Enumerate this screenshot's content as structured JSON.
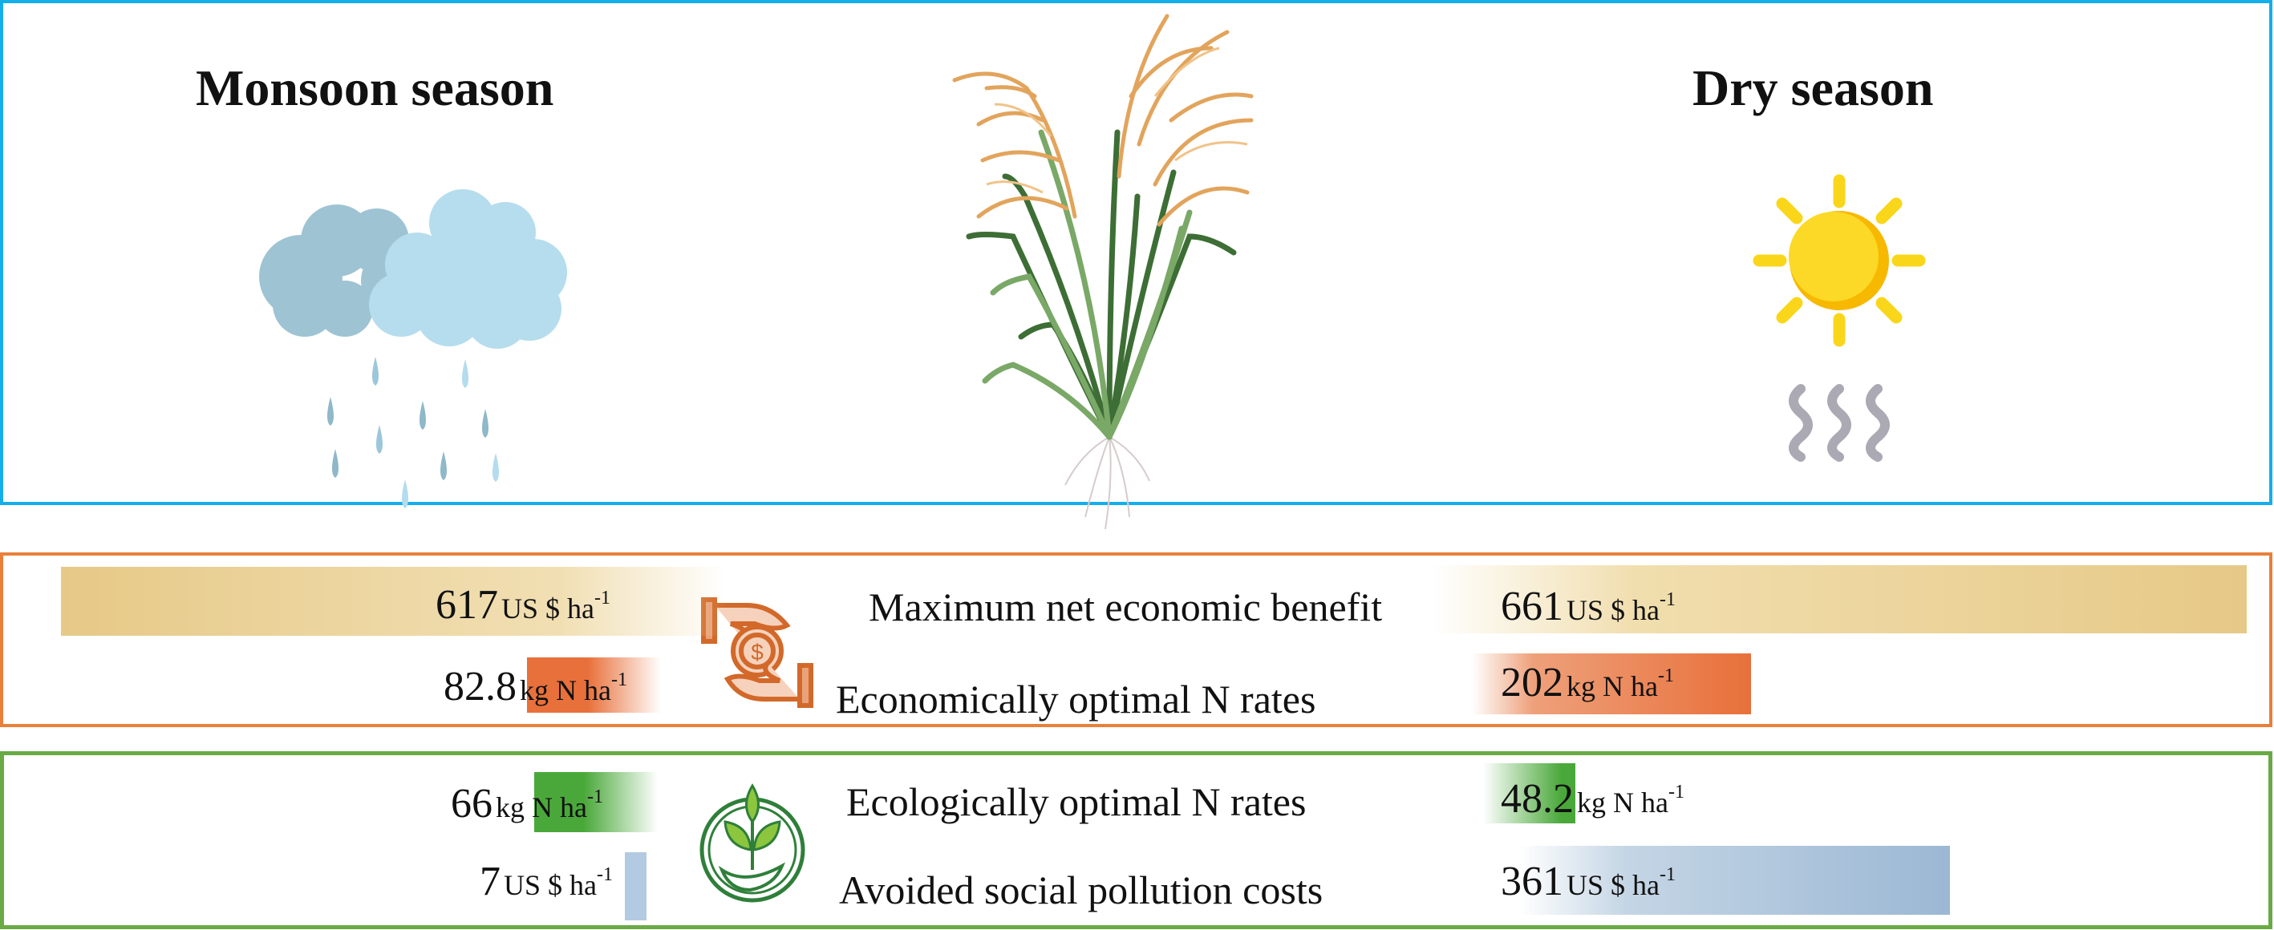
{
  "seasons": {
    "left_title": "Monsoon season",
    "right_title": "Dry season"
  },
  "icons": {
    "left": "rain-cloud-icon",
    "center": "rice-plant-illustration",
    "right": "sun-heat-icon",
    "economic": "money-hands-icon",
    "ecological": "plant-in-hand-icon"
  },
  "colors": {
    "top_border": "#14aeea",
    "economic_border": "#e8803a",
    "ecological_border": "#6aaa45",
    "benefit_bar": "#e6c987",
    "econ_n_bar": "#e8703a",
    "eco_n_bar": "#4aa83a",
    "pollution_bar": "#9bb8d4"
  },
  "economic": {
    "rows": [
      {
        "label": "Maximum net economic benefit",
        "monsoon": {
          "value": "617",
          "unit": "US $ ha",
          "exp": "-1"
        },
        "dry": {
          "value": "661",
          "unit": "US $ ha",
          "exp": "-1"
        }
      },
      {
        "label": "Economically optimal N rates",
        "monsoon": {
          "value": "82.8",
          "unit": "kg N ha",
          "exp": "-1"
        },
        "dry": {
          "value": "202",
          "unit": "kg N ha",
          "exp": "-1"
        }
      }
    ]
  },
  "ecological": {
    "rows": [
      {
        "label": "Ecologically optimal N rates",
        "monsoon": {
          "value": "66",
          "unit": "kg N ha",
          "exp": "-1"
        },
        "dry": {
          "value": "48.2",
          "unit": "kg N ha",
          "exp": "-1"
        }
      },
      {
        "label": "Avoided social pollution costs",
        "monsoon": {
          "value": "7",
          "unit": "US $ ha",
          "exp": "-1"
        },
        "dry": {
          "value": "361",
          "unit": "US $ ha",
          "exp": "-1"
        }
      }
    ]
  }
}
